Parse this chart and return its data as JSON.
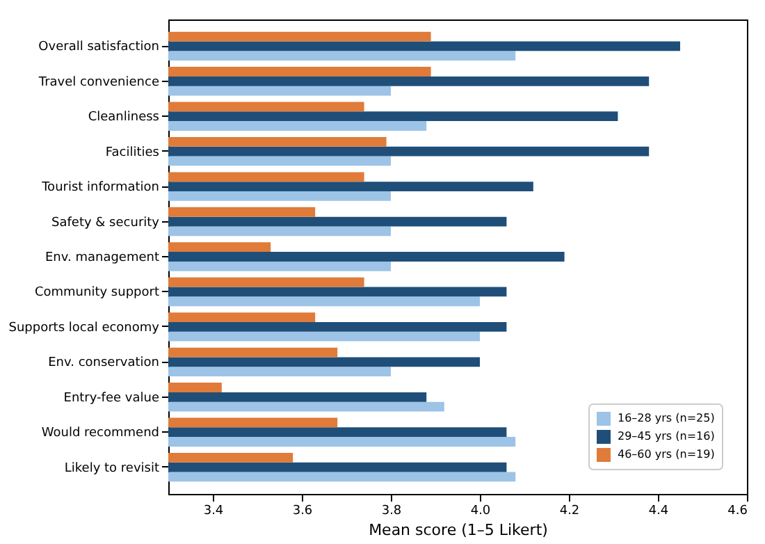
{
  "chart_data": {
    "type": "bar",
    "orientation": "horizontal",
    "xlabel": "Mean score (1–5 Likert)",
    "categories": [
      "Overall satisfaction",
      "Travel convenience",
      "Cleanliness",
      "Facilities",
      "Tourist information",
      "Safety & security",
      "Env. management",
      "Community support",
      "Supports local economy",
      "Env. conservation",
      "Entry-fee value",
      "Would recommend",
      "Likely to revisit"
    ],
    "series": [
      {
        "name": "16–28 yrs (n=25)",
        "color": "#9dc3e6",
        "values": [
          4.08,
          3.8,
          3.88,
          3.8,
          3.8,
          3.8,
          3.8,
          4.0,
          4.0,
          3.8,
          3.92,
          4.08,
          4.08
        ]
      },
      {
        "name": "29–45 yrs (n=16)",
        "color": "#1f4e79",
        "values": [
          4.45,
          4.38,
          4.31,
          4.38,
          4.12,
          4.06,
          4.19,
          4.06,
          4.06,
          4.0,
          3.88,
          4.06,
          4.06
        ]
      },
      {
        "name": "46–60 yrs (n=19)",
        "color": "#e07b39",
        "values": [
          3.89,
          3.89,
          3.74,
          3.79,
          3.74,
          3.63,
          3.53,
          3.74,
          3.63,
          3.68,
          3.42,
          3.68,
          3.58
        ]
      }
    ],
    "xlim": [
      3.3,
      4.6
    ],
    "xticks": [
      3.4,
      3.6,
      3.8,
      {
        "value": 4,
        "label": "4.0"
      },
      4.2,
      4.4,
      4.6
    ],
    "legend": "bottom right",
    "grid": false
  }
}
